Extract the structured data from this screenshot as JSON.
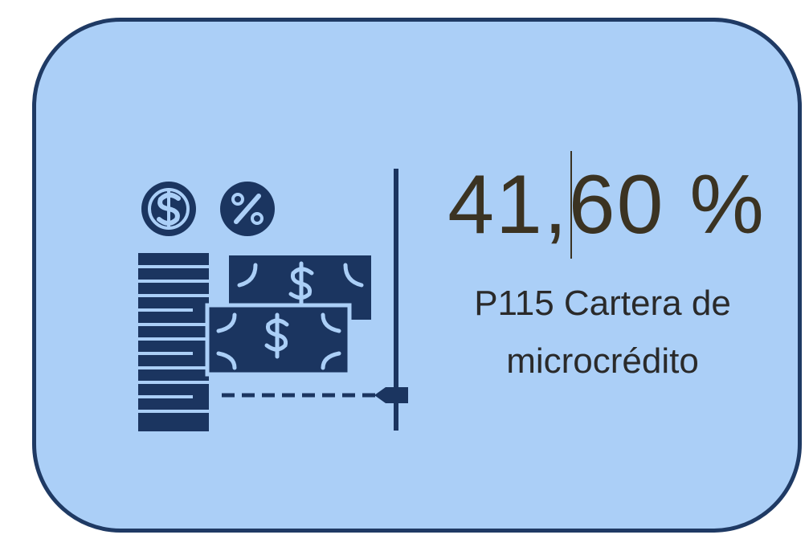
{
  "card": {
    "value": "41,60 %",
    "label": "P115 Cartera de microcrédito"
  }
}
